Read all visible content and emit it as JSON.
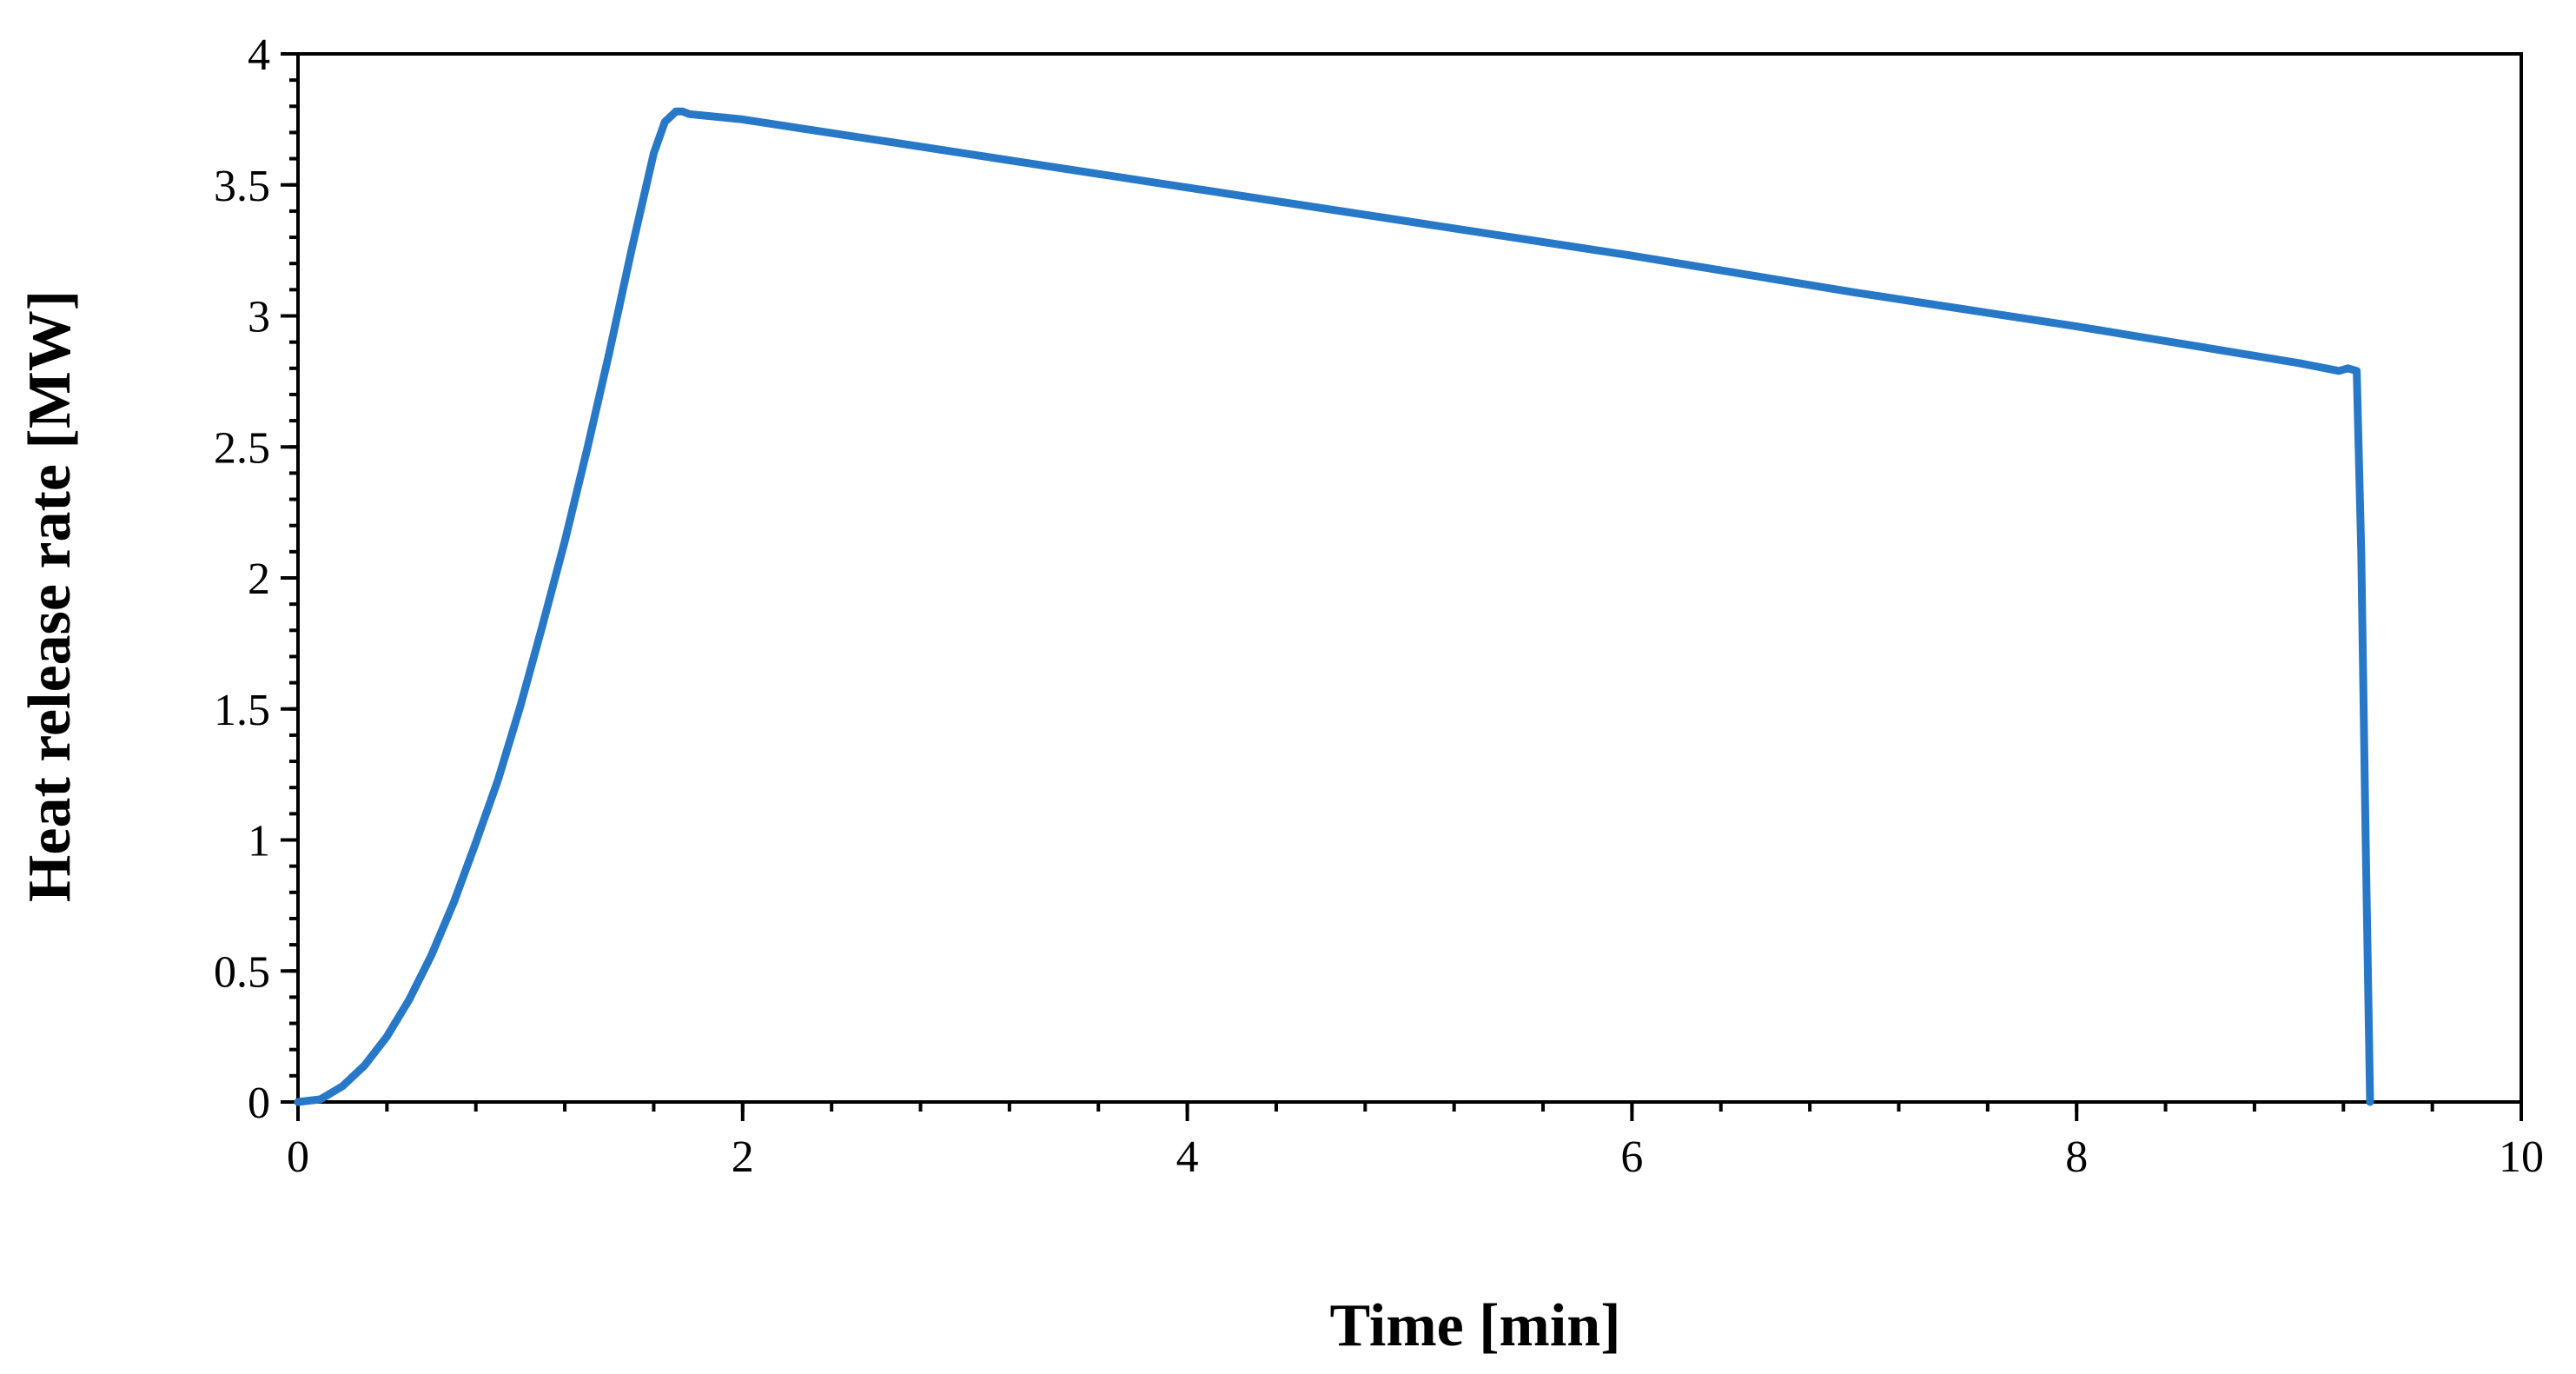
{
  "chart_data": {
    "type": "line",
    "title": "",
    "xlabel": "Time [min]",
    "ylabel": "Heat release rate [MW]",
    "xlim": [
      0,
      10
    ],
    "ylim": [
      0,
      4
    ],
    "x_ticks": [
      0,
      2,
      4,
      6,
      8,
      10
    ],
    "x_tick_labels": [
      "0",
      "2",
      "4",
      "6",
      "8",
      "10"
    ],
    "y_ticks": [
      0,
      0.5,
      1,
      1.5,
      2,
      2.5,
      3,
      3.5,
      4
    ],
    "y_tick_labels": [
      "0",
      "0.5",
      "1",
      "1.5",
      "2",
      "2.5",
      "3",
      "3.5",
      "4"
    ],
    "x_minor_step": 0.4,
    "y_minor_step": 0.1,
    "grid": false,
    "legend": "none",
    "series": [
      {
        "color": "#2878C8",
        "x": [
          0,
          0.1,
          0.2,
          0.3,
          0.4,
          0.5,
          0.6,
          0.7,
          0.8,
          0.9,
          1.0,
          1.1,
          1.2,
          1.3,
          1.4,
          1.5,
          1.6,
          1.65,
          1.7,
          1.73,
          1.76,
          2,
          3,
          4,
          5,
          6,
          7,
          8,
          9,
          9.18,
          9.22,
          9.26,
          9.28,
          9.3,
          9.32
        ],
        "y": [
          0,
          0.01,
          0.06,
          0.14,
          0.25,
          0.39,
          0.56,
          0.76,
          0.99,
          1.23,
          1.51,
          1.82,
          2.14,
          2.49,
          2.86,
          3.25,
          3.62,
          3.74,
          3.78,
          3.78,
          3.77,
          3.75,
          3.62,
          3.49,
          3.36,
          3.23,
          3.09,
          2.96,
          2.82,
          2.79,
          2.8,
          2.79,
          2.1,
          1.0,
          0
        ]
      }
    ]
  }
}
